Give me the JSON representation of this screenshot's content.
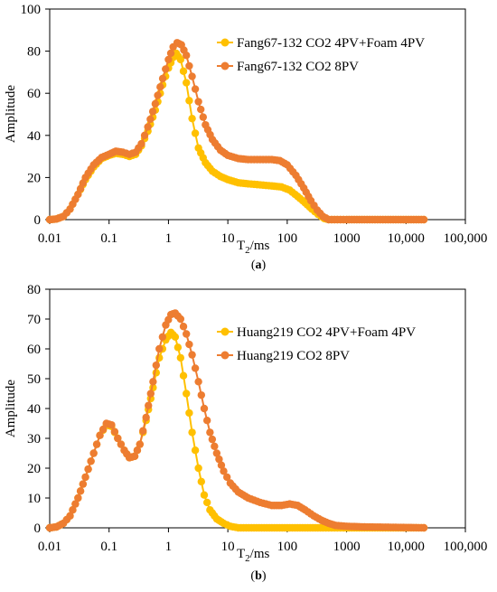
{
  "chart_data": [
    {
      "type": "scatter",
      "panel_label": "a",
      "xlabel": "T2/ms",
      "ylabel": "Amplitude",
      "x_scale": "log",
      "xlim": [
        0.01,
        100000
      ],
      "ylim": [
        0,
        100
      ],
      "x_ticks": [
        0.01,
        0.1,
        1,
        10,
        100,
        1000,
        10000,
        100000
      ],
      "x_tick_labels": [
        "0.01",
        "0.1",
        "1",
        "10",
        "100",
        "1000",
        "10,000",
        "100,000"
      ],
      "y_ticks": [
        0,
        20,
        40,
        60,
        80,
        100
      ],
      "y_tick_labels": [
        "0",
        "20",
        "40",
        "60",
        "80",
        "100"
      ],
      "grid": false,
      "legend_position": "top-right",
      "series": [
        {
          "name": "Fang67-132 CO2 4PV+Foam 4PV",
          "color": "#FFC000",
          "points": [
            [
              0.01,
              0
            ],
            [
              0.013,
              0.3
            ],
            [
              0.017,
              1.5
            ],
            [
              0.022,
              5
            ],
            [
              0.03,
              12
            ],
            [
              0.04,
              19
            ],
            [
              0.055,
              25
            ],
            [
              0.075,
              29
            ],
            [
              0.1,
              30.5
            ],
            [
              0.13,
              31.5
            ],
            [
              0.17,
              31
            ],
            [
              0.22,
              30
            ],
            [
              0.28,
              31
            ],
            [
              0.35,
              35
            ],
            [
              0.45,
              42
            ],
            [
              0.6,
              52
            ],
            [
              0.8,
              64
            ],
            [
              1.0,
              72
            ],
            [
              1.2,
              77
            ],
            [
              1.35,
              79
            ],
            [
              1.6,
              76
            ],
            [
              2.0,
              65
            ],
            [
              2.5,
              48
            ],
            [
              3.2,
              34
            ],
            [
              4.2,
              27
            ],
            [
              5.5,
              23
            ],
            [
              7.5,
              20.5
            ],
            [
              10,
              19
            ],
            [
              15,
              17.5
            ],
            [
              22,
              17
            ],
            [
              35,
              16.5
            ],
            [
              55,
              16
            ],
            [
              80,
              15.5
            ],
            [
              110,
              14
            ],
            [
              150,
              11
            ],
            [
              200,
              8
            ],
            [
              260,
              5
            ],
            [
              330,
              2.5
            ],
            [
              420,
              0.5
            ],
            [
              500,
              0
            ],
            [
              700,
              0
            ],
            [
              1000,
              0
            ],
            [
              2000,
              0
            ],
            [
              5000,
              0
            ],
            [
              10000,
              0
            ],
            [
              20000,
              0
            ]
          ]
        },
        {
          "name": "Fang67-132 CO2 8PV",
          "color": "#ED7D31",
          "points": [
            [
              0.01,
              0
            ],
            [
              0.013,
              0.3
            ],
            [
              0.017,
              1.5
            ],
            [
              0.022,
              5
            ],
            [
              0.03,
              12
            ],
            [
              0.04,
              20
            ],
            [
              0.055,
              26
            ],
            [
              0.075,
              29.5
            ],
            [
              0.1,
              31
            ],
            [
              0.13,
              32.5
            ],
            [
              0.17,
              32
            ],
            [
              0.22,
              31
            ],
            [
              0.28,
              32
            ],
            [
              0.35,
              36
            ],
            [
              0.45,
              44
            ],
            [
              0.6,
              55
            ],
            [
              0.8,
              67
            ],
            [
              1.0,
              76
            ],
            [
              1.2,
              82
            ],
            [
              1.4,
              84
            ],
            [
              1.65,
              83
            ],
            [
              2.0,
              78
            ],
            [
              2.5,
              68
            ],
            [
              3.2,
              56
            ],
            [
              4.2,
              45
            ],
            [
              5.5,
              38
            ],
            [
              7.5,
              33
            ],
            [
              10,
              30.5
            ],
            [
              15,
              29
            ],
            [
              22,
              28.5
            ],
            [
              35,
              28.5
            ],
            [
              55,
              28.5
            ],
            [
              75,
              28
            ],
            [
              100,
              26
            ],
            [
              140,
              21
            ],
            [
              190,
              15
            ],
            [
              250,
              9
            ],
            [
              320,
              4.5
            ],
            [
              400,
              1.5
            ],
            [
              500,
              0
            ],
            [
              700,
              0
            ],
            [
              1000,
              0
            ],
            [
              2000,
              0
            ],
            [
              5000,
              0
            ],
            [
              10000,
              0
            ],
            [
              20000,
              0
            ]
          ]
        }
      ]
    },
    {
      "type": "scatter",
      "panel_label": "b",
      "xlabel": "T2/ms",
      "ylabel": "Amplitude",
      "x_scale": "log",
      "xlim": [
        0.01,
        100000
      ],
      "ylim": [
        0,
        80
      ],
      "x_ticks": [
        0.01,
        0.1,
        1,
        10,
        100,
        1000,
        10000,
        100000
      ],
      "x_tick_labels": [
        "0.01",
        "0.1",
        "1",
        "10",
        "100",
        "1000",
        "10,000",
        "100,000"
      ],
      "y_ticks": [
        0,
        10,
        20,
        30,
        40,
        50,
        60,
        70,
        80
      ],
      "y_tick_labels": [
        "0",
        "10",
        "20",
        "30",
        "40",
        "50",
        "60",
        "70",
        "80"
      ],
      "grid": false,
      "legend_position": "top-right",
      "series": [
        {
          "name": "Huang219 CO2 4PV+Foam 4PV",
          "color": "#FFC000",
          "points": [
            [
              0.01,
              0
            ],
            [
              0.013,
              0.3
            ],
            [
              0.017,
              1.5
            ],
            [
              0.022,
              4
            ],
            [
              0.03,
              10
            ],
            [
              0.04,
              17
            ],
            [
              0.055,
              25
            ],
            [
              0.07,
              31
            ],
            [
              0.09,
              34.5
            ],
            [
              0.11,
              34
            ],
            [
              0.14,
              30
            ],
            [
              0.18,
              26
            ],
            [
              0.22,
              23.5
            ],
            [
              0.27,
              24
            ],
            [
              0.33,
              28
            ],
            [
              0.42,
              36
            ],
            [
              0.55,
              47
            ],
            [
              0.7,
              57
            ],
            [
              0.9,
              63
            ],
            [
              1.1,
              65.5
            ],
            [
              1.3,
              64
            ],
            [
              1.6,
              57
            ],
            [
              2.0,
              45
            ],
            [
              2.5,
              32
            ],
            [
              3.2,
              20
            ],
            [
              4.0,
              11
            ],
            [
              5.0,
              6
            ],
            [
              6.5,
              3
            ],
            [
              8.5,
              1.5
            ],
            [
              11,
              0.5
            ],
            [
              15,
              0
            ],
            [
              25,
              0
            ],
            [
              50,
              0
            ],
            [
              100,
              0
            ],
            [
              200,
              0
            ],
            [
              400,
              0
            ],
            [
              700,
              0
            ],
            [
              1000,
              0
            ],
            [
              2000,
              0
            ],
            [
              5000,
              0
            ],
            [
              10000,
              0
            ],
            [
              20000,
              0
            ]
          ]
        },
        {
          "name": "Huang219 CO2 8PV",
          "color": "#ED7D31",
          "points": [
            [
              0.01,
              0
            ],
            [
              0.013,
              0.3
            ],
            [
              0.017,
              1.5
            ],
            [
              0.022,
              4
            ],
            [
              0.03,
              10
            ],
            [
              0.04,
              17
            ],
            [
              0.055,
              25
            ],
            [
              0.07,
              31
            ],
            [
              0.09,
              35
            ],
            [
              0.11,
              34.5
            ],
            [
              0.14,
              30
            ],
            [
              0.18,
              26
            ],
            [
              0.22,
              23.5
            ],
            [
              0.27,
              24
            ],
            [
              0.33,
              28
            ],
            [
              0.42,
              37
            ],
            [
              0.55,
              49
            ],
            [
              0.7,
              60
            ],
            [
              0.9,
              68
            ],
            [
              1.1,
              71.5
            ],
            [
              1.3,
              72
            ],
            [
              1.6,
              70
            ],
            [
              2.0,
              65
            ],
            [
              2.5,
              58
            ],
            [
              3.2,
              49
            ],
            [
              4.0,
              40
            ],
            [
              5.0,
              32
            ],
            [
              6.5,
              25
            ],
            [
              8.5,
              19
            ],
            [
              11,
              15
            ],
            [
              15,
              12
            ],
            [
              22,
              10
            ],
            [
              35,
              8.5
            ],
            [
              55,
              7.5
            ],
            [
              80,
              7.5
            ],
            [
              110,
              8
            ],
            [
              150,
              7.5
            ],
            [
              200,
              6
            ],
            [
              280,
              4
            ],
            [
              380,
              2.5
            ],
            [
              500,
              1.5
            ],
            [
              650,
              0.8
            ],
            [
              1000,
              0.5
            ],
            [
              2000,
              0.3
            ],
            [
              5000,
              0.2
            ],
            [
              10000,
              0.1
            ],
            [
              20000,
              0
            ]
          ]
        }
      ]
    }
  ]
}
